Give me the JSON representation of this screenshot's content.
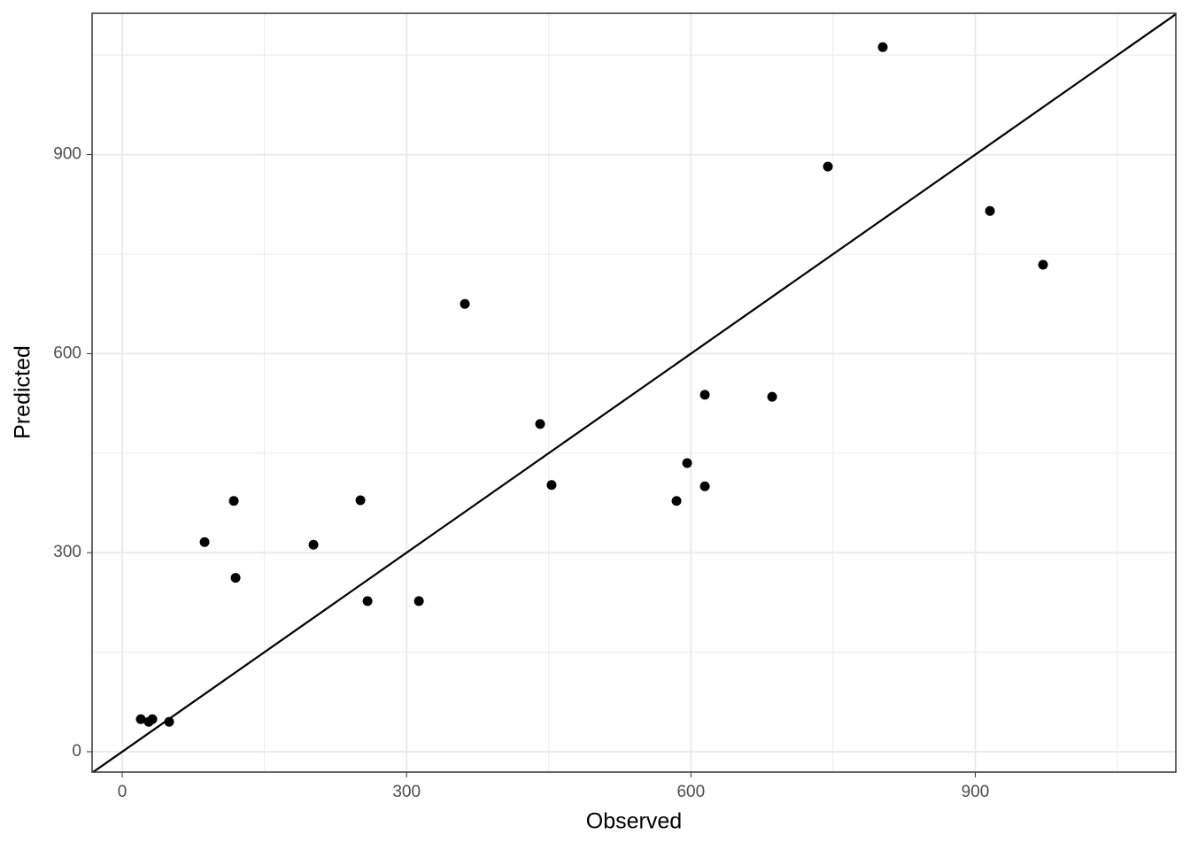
{
  "chart_data": {
    "type": "scatter",
    "x_label": "Observed",
    "y_label": "Predicted",
    "x": [
      19.6,
      28,
      31.8,
      49.5,
      86.9,
      117.7,
      119.6,
      201.8,
      251.3,
      258.8,
      313,
      361.5,
      440.9,
      453,
      584.8,
      596,
      614.7,
      614.7,
      685.7,
      744.5,
      802.4,
      915.5,
      971.5
    ],
    "values": [
      49,
      45,
      49,
      45,
      316,
      378,
      262,
      312,
      379,
      227,
      227,
      675,
      494,
      402,
      378,
      435,
      538,
      400,
      535,
      882,
      1062,
      815,
      734
    ],
    "color": "#000000",
    "xlim": [
      -31.8,
      1111.6
    ],
    "ylim": [
      -30.7,
      1113
    ],
    "xticks": [
      0,
      300,
      600,
      900
    ],
    "yticks": [
      0,
      300,
      600,
      900
    ],
    "xminor": [
      150,
      450,
      750,
      1050
    ],
    "yminor": [
      150,
      450,
      750,
      1050
    ],
    "grid": true,
    "diagonal": true
  }
}
